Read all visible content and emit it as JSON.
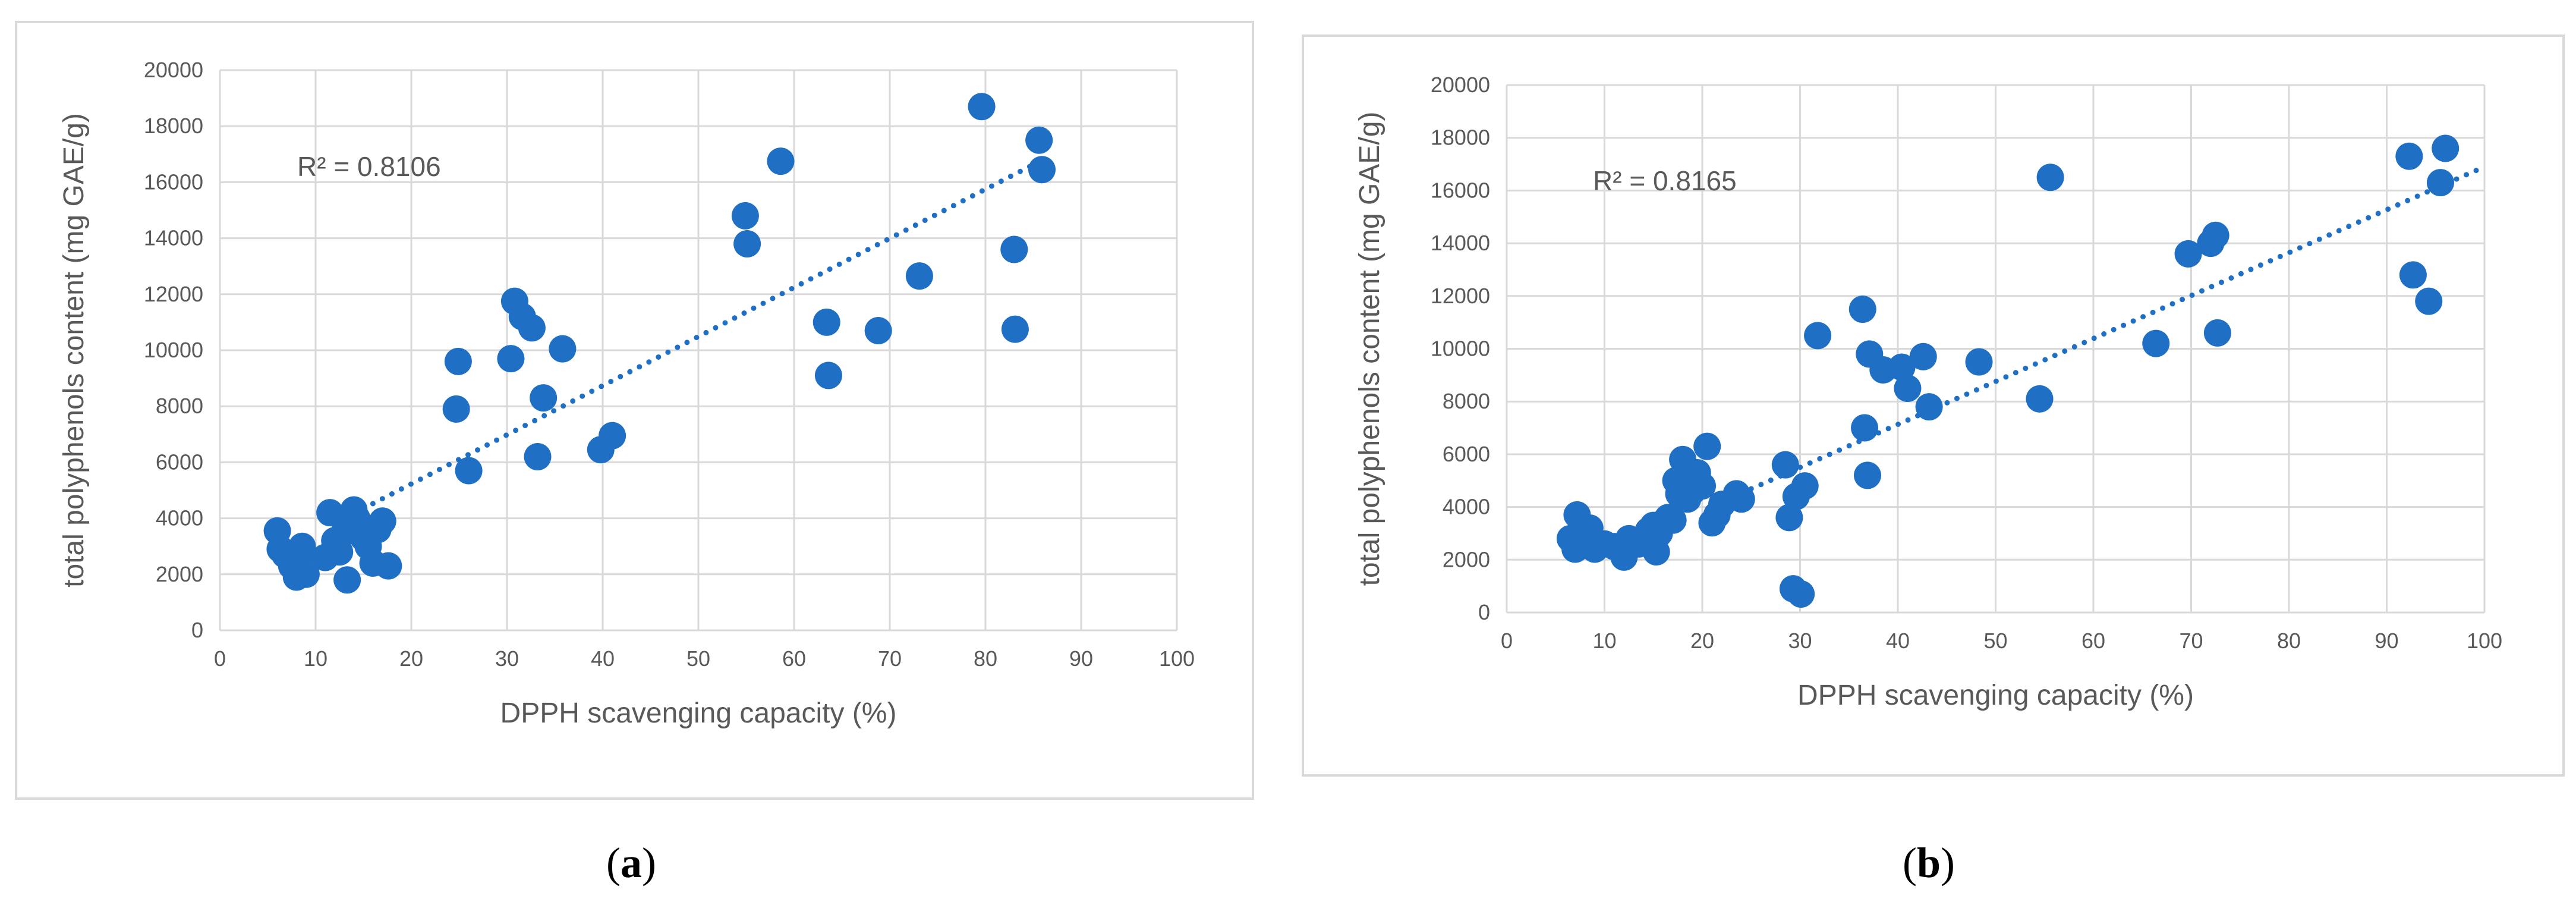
{
  "panels": [
    {
      "label_open": "(",
      "label_letter": "a",
      "label_close": ")"
    },
    {
      "label_open": "(",
      "label_letter": "b",
      "label_close": ")"
    }
  ],
  "chart_data": [
    {
      "type": "scatter",
      "title": "",
      "xlabel": "DPPH scavenging capacity (%)",
      "ylabel": "total polyphenols content (mg GAE/g)",
      "xlim": [
        0,
        100
      ],
      "ylim": [
        0,
        20000
      ],
      "xticks": [
        0,
        10,
        20,
        30,
        40,
        50,
        60,
        70,
        80,
        90,
        100
      ],
      "yticks": [
        0,
        2000,
        4000,
        6000,
        8000,
        10000,
        12000,
        14000,
        16000,
        18000,
        20000
      ],
      "grid": true,
      "marker_color": "#1f6fc5",
      "trendline": {
        "style": "dotted",
        "x": [
          13,
          86
        ],
        "y": [
          4000,
          16800
        ],
        "annotation": "R² = 0.8106"
      },
      "points": {
        "x": [
          6,
          6.3,
          6.8,
          7.5,
          8,
          8.3,
          8.6,
          9,
          11,
          11.5,
          12,
          12.5,
          13,
          13.3,
          13.6,
          14,
          14.3,
          14.6,
          15,
          15.5,
          16,
          16.5,
          17,
          17.6,
          24.7,
          24.9,
          26,
          30.4,
          30.8,
          31.6,
          32.6,
          33.2,
          33.8,
          35.8,
          39.8,
          41,
          54.9,
          55.1,
          58.6,
          63.4,
          63.6,
          68.8,
          73.1,
          79.6,
          83,
          83.1,
          85.6,
          85.9
        ],
        "y": [
          3550,
          2900,
          2700,
          2300,
          1900,
          2600,
          3000,
          2000,
          2600,
          4200,
          3200,
          2800,
          3500,
          1800,
          3800,
          4300,
          4000,
          3700,
          3300,
          3000,
          2400,
          3600,
          3900,
          2300,
          7900,
          9600,
          5700,
          9700,
          11750,
          11200,
          10800,
          6200,
          8300,
          10050,
          6450,
          6950,
          14800,
          13800,
          16750,
          11000,
          9100,
          10700,
          12650,
          18700,
          13600,
          10750,
          17500,
          16450
        ]
      }
    },
    {
      "type": "scatter",
      "title": "",
      "xlabel": "DPPH scavenging capacity (%)",
      "ylabel": "total polyphenols content (mg GAE/g)",
      "xlim": [
        0,
        100
      ],
      "ylim": [
        0,
        20000
      ],
      "xticks": [
        0,
        10,
        20,
        30,
        40,
        50,
        60,
        70,
        80,
        90,
        100
      ],
      "yticks": [
        0,
        2000,
        4000,
        6000,
        8000,
        10000,
        12000,
        14000,
        16000,
        18000,
        20000
      ],
      "grid": true,
      "marker_color": "#1f6fc5",
      "trendline": {
        "style": "dotted",
        "x": [
          22,
          100
        ],
        "y": [
          4200,
          16900
        ],
        "annotation": "R² = 0.8165"
      },
      "points": {
        "x": [
          6.5,
          7,
          7.2,
          7.5,
          8.5,
          9,
          10,
          11,
          12,
          12.5,
          13.5,
          14.5,
          15,
          15.3,
          15.6,
          16,
          16.5,
          17,
          17.3,
          17.6,
          18,
          18.5,
          19,
          19.5,
          20,
          20.5,
          21,
          21.5,
          22,
          23.5,
          24,
          28.5,
          28.9,
          29.3,
          29.6,
          30.1,
          30.5,
          31.8,
          36.4,
          36.6,
          36.9,
          37.1,
          38.5,
          40.4,
          41,
          42.6,
          43.2,
          48.3,
          54.5,
          55.6,
          66.4,
          69.7,
          72,
          72.5,
          72.7,
          92.3,
          92.7,
          94.3,
          95.5,
          96
        ],
        "y": [
          2800,
          2400,
          3700,
          3000,
          3200,
          2400,
          2600,
          2500,
          2100,
          2800,
          2600,
          3100,
          3300,
          2300,
          3000,
          3400,
          3600,
          3500,
          5000,
          4500,
          5800,
          4300,
          4600,
          5300,
          4800,
          6300,
          3400,
          3700,
          4100,
          4500,
          4300,
          5600,
          3600,
          900,
          4400,
          700,
          4800,
          10500,
          11500,
          7000,
          5200,
          9800,
          9200,
          9300,
          8500,
          9700,
          7800,
          9500,
          8100,
          16500,
          10200,
          13600,
          14000,
          14300,
          10600,
          17300,
          12800,
          11800,
          16300,
          17600
        ]
      }
    }
  ]
}
